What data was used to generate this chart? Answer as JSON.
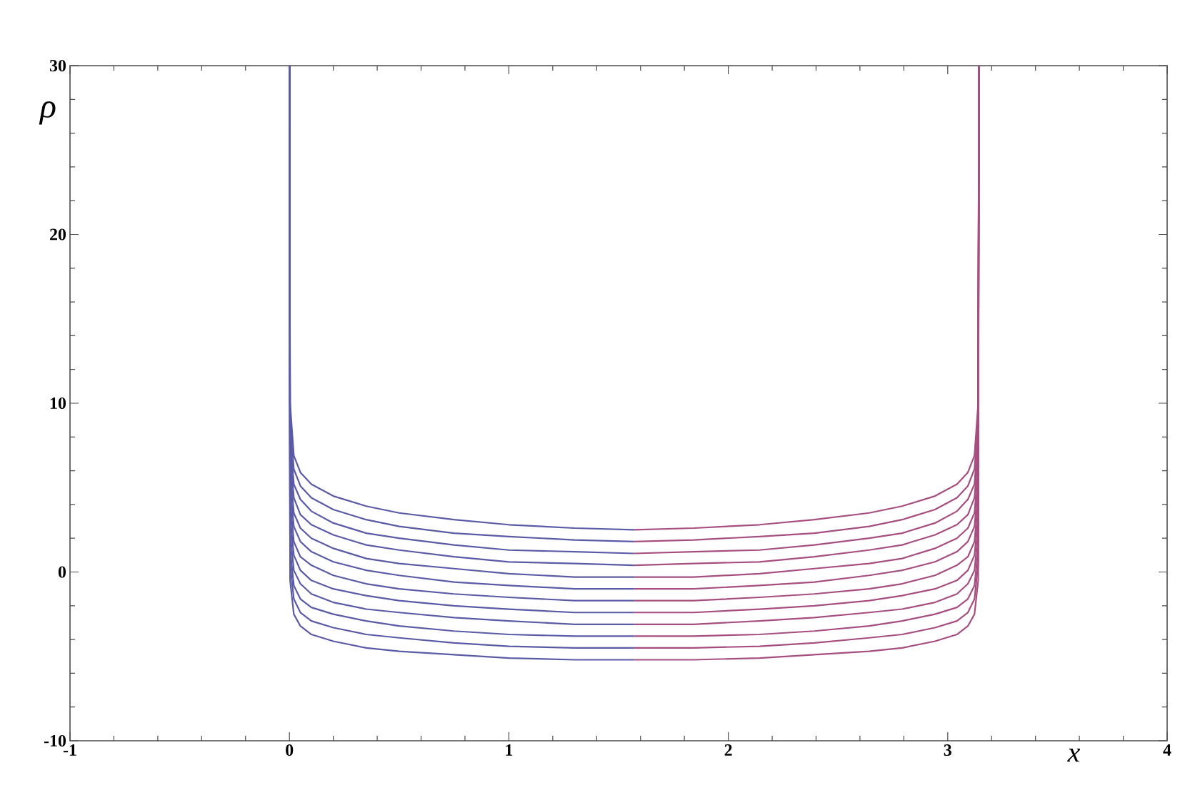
{
  "chart_data": {
    "type": "line",
    "xlabel": "x",
    "ylabel": "ρ",
    "xlim": [
      -1,
      4
    ],
    "ylim": [
      -10,
      30
    ],
    "xticks": [
      -1,
      0,
      1,
      2,
      3,
      4
    ],
    "yticks": [
      -10,
      0,
      10,
      20,
      30
    ],
    "marker": "none",
    "line_style": "solid",
    "series": [
      {
        "color": "#5a5aa6",
        "x": [
          0,
          0.003,
          0.02,
          0.05,
          0.1,
          0.2,
          0.35,
          0.5,
          0.75,
          1.0,
          1.3,
          1.571
        ],
        "values": [
          30,
          10.0,
          6.9,
          5.9,
          5.2,
          4.5,
          3.9,
          3.5,
          3.1,
          2.8,
          2.6,
          2.5
        ]
      },
      {
        "color": "#5a5aa6",
        "x": [
          0,
          0.003,
          0.02,
          0.05,
          0.1,
          0.2,
          0.35,
          0.5,
          0.75,
          1.0,
          1.3,
          1.571
        ],
        "values": [
          30,
          9.0,
          6.1,
          5.1,
          4.4,
          3.7,
          3.1,
          2.7,
          2.3,
          2.1,
          1.9,
          1.8
        ]
      },
      {
        "color": "#5a5aa6",
        "x": [
          0,
          0.003,
          0.02,
          0.05,
          0.1,
          0.2,
          0.35,
          0.5,
          0.75,
          1.0,
          1.3,
          1.571
        ],
        "values": [
          30,
          8.1,
          5.2,
          4.3,
          3.6,
          2.9,
          2.3,
          2.0,
          1.6,
          1.3,
          1.2,
          1.1
        ]
      },
      {
        "color": "#5a5aa6",
        "x": [
          0,
          0.003,
          0.02,
          0.05,
          0.1,
          0.2,
          0.35,
          0.5,
          0.75,
          1.0,
          1.3,
          1.571
        ],
        "values": [
          30,
          7.1,
          4.4,
          3.4,
          2.8,
          2.2,
          1.6,
          1.3,
          0.9,
          0.6,
          0.5,
          0.4
        ]
      },
      {
        "color": "#5a5aa6",
        "x": [
          0,
          0.003,
          0.02,
          0.05,
          0.1,
          0.2,
          0.35,
          0.5,
          0.75,
          1.0,
          1.3,
          1.571
        ],
        "values": [
          30,
          6.2,
          3.5,
          2.6,
          2.0,
          1.4,
          0.8,
          0.5,
          0.2,
          -0.1,
          -0.3,
          -0.3
        ]
      },
      {
        "color": "#5a5aa6",
        "x": [
          0,
          0.003,
          0.02,
          0.05,
          0.1,
          0.2,
          0.35,
          0.5,
          0.75,
          1.0,
          1.3,
          1.571
        ],
        "values": [
          30,
          5.2,
          2.7,
          1.8,
          1.2,
          0.6,
          0.1,
          -0.2,
          -0.6,
          -0.8,
          -1.0,
          -1.0
        ]
      },
      {
        "color": "#5a5aa6",
        "x": [
          0,
          0.003,
          0.02,
          0.05,
          0.1,
          0.2,
          0.35,
          0.5,
          0.75,
          1.0,
          1.3,
          1.571
        ],
        "values": [
          30,
          4.3,
          1.8,
          0.9,
          0.4,
          -0.2,
          -0.7,
          -1.0,
          -1.3,
          -1.5,
          -1.7,
          -1.7
        ]
      },
      {
        "color": "#5a5aa6",
        "x": [
          0,
          0.003,
          0.02,
          0.05,
          0.1,
          0.2,
          0.35,
          0.5,
          0.75,
          1.0,
          1.3,
          1.571
        ],
        "values": [
          30,
          3.3,
          1.0,
          0.1,
          -0.5,
          -1.0,
          -1.4,
          -1.7,
          -2.0,
          -2.2,
          -2.4,
          -2.4
        ]
      },
      {
        "color": "#5a5aa6",
        "x": [
          0,
          0.003,
          0.02,
          0.05,
          0.1,
          0.2,
          0.35,
          0.5,
          0.75,
          1.0,
          1.3,
          1.571
        ],
        "values": [
          30,
          2.4,
          0.1,
          -0.7,
          -1.3,
          -1.8,
          -2.2,
          -2.4,
          -2.7,
          -2.9,
          -3.1,
          -3.1
        ]
      },
      {
        "color": "#5a5aa6",
        "x": [
          0,
          0.003,
          0.02,
          0.05,
          0.1,
          0.2,
          0.35,
          0.5,
          0.75,
          1.0,
          1.3,
          1.571
        ],
        "values": [
          30,
          1.4,
          -0.8,
          -1.6,
          -2.1,
          -2.5,
          -2.9,
          -3.2,
          -3.5,
          -3.7,
          -3.8,
          -3.8
        ]
      },
      {
        "color": "#5a5aa6",
        "x": [
          0,
          0.003,
          0.02,
          0.05,
          0.1,
          0.2,
          0.35,
          0.5,
          0.75,
          1.0,
          1.3,
          1.571
        ],
        "values": [
          30,
          0.5,
          -1.6,
          -2.4,
          -2.9,
          -3.3,
          -3.7,
          -3.9,
          -4.2,
          -4.4,
          -4.5,
          -4.5
        ]
      },
      {
        "color": "#5a5aa6",
        "x": [
          0,
          0.003,
          0.02,
          0.05,
          0.1,
          0.2,
          0.35,
          0.5,
          0.75,
          1.0,
          1.3,
          1.571
        ],
        "values": [
          30,
          -0.5,
          -2.5,
          -3.2,
          -3.7,
          -4.1,
          -4.5,
          -4.7,
          -4.9,
          -5.1,
          -5.2,
          -5.2
        ]
      },
      {
        "color": "#a64e80",
        "x": [
          1.571,
          1.842,
          2.142,
          2.392,
          2.642,
          2.792,
          2.942,
          3.042,
          3.092,
          3.122,
          3.139,
          3.142
        ],
        "values": [
          2.5,
          2.6,
          2.8,
          3.1,
          3.5,
          3.9,
          4.5,
          5.2,
          5.9,
          6.9,
          10.0,
          30
        ]
      },
      {
        "color": "#a64e80",
        "x": [
          1.571,
          1.842,
          2.142,
          2.392,
          2.642,
          2.792,
          2.942,
          3.042,
          3.092,
          3.122,
          3.139,
          3.142
        ],
        "values": [
          1.8,
          1.9,
          2.1,
          2.3,
          2.7,
          3.1,
          3.7,
          4.4,
          5.1,
          6.1,
          9.0,
          30
        ]
      },
      {
        "color": "#a64e80",
        "x": [
          1.571,
          1.842,
          2.142,
          2.392,
          2.642,
          2.792,
          2.942,
          3.042,
          3.092,
          3.122,
          3.139,
          3.142
        ],
        "values": [
          1.1,
          1.2,
          1.3,
          1.6,
          2.0,
          2.3,
          2.9,
          3.6,
          4.3,
          5.2,
          8.1,
          30
        ]
      },
      {
        "color": "#a64e80",
        "x": [
          1.571,
          1.842,
          2.142,
          2.392,
          2.642,
          2.792,
          2.942,
          3.042,
          3.092,
          3.122,
          3.139,
          3.142
        ],
        "values": [
          0.4,
          0.5,
          0.6,
          0.9,
          1.3,
          1.6,
          2.2,
          2.8,
          3.4,
          4.4,
          7.1,
          30
        ]
      },
      {
        "color": "#a64e80",
        "x": [
          1.571,
          1.842,
          2.142,
          2.392,
          2.642,
          2.792,
          2.942,
          3.042,
          3.092,
          3.122,
          3.139,
          3.142
        ],
        "values": [
          -0.3,
          -0.3,
          -0.1,
          0.2,
          0.5,
          0.8,
          1.4,
          2.0,
          2.6,
          3.5,
          6.2,
          30
        ]
      },
      {
        "color": "#a64e80",
        "x": [
          1.571,
          1.842,
          2.142,
          2.392,
          2.642,
          2.792,
          2.942,
          3.042,
          3.092,
          3.122,
          3.139,
          3.142
        ],
        "values": [
          -1.0,
          -1.0,
          -0.8,
          -0.6,
          -0.2,
          0.1,
          0.6,
          1.2,
          1.8,
          2.7,
          5.2,
          30
        ]
      },
      {
        "color": "#a64e80",
        "x": [
          1.571,
          1.842,
          2.142,
          2.392,
          2.642,
          2.792,
          2.942,
          3.042,
          3.092,
          3.122,
          3.139,
          3.142
        ],
        "values": [
          -1.7,
          -1.7,
          -1.5,
          -1.3,
          -1.0,
          -0.7,
          -0.2,
          0.4,
          0.9,
          1.8,
          4.3,
          30
        ]
      },
      {
        "color": "#a64e80",
        "x": [
          1.571,
          1.842,
          2.142,
          2.392,
          2.642,
          2.792,
          2.942,
          3.042,
          3.092,
          3.122,
          3.139,
          3.142
        ],
        "values": [
          -2.4,
          -2.4,
          -2.2,
          -2.0,
          -1.7,
          -1.4,
          -1.0,
          -0.5,
          0.1,
          1.0,
          3.3,
          30
        ]
      },
      {
        "color": "#a64e80",
        "x": [
          1.571,
          1.842,
          2.142,
          2.392,
          2.642,
          2.792,
          2.942,
          3.042,
          3.092,
          3.122,
          3.139,
          3.142
        ],
        "values": [
          -3.1,
          -3.1,
          -2.9,
          -2.7,
          -2.4,
          -2.2,
          -1.8,
          -1.3,
          -0.7,
          0.1,
          2.4,
          30
        ]
      },
      {
        "color": "#a64e80",
        "x": [
          1.571,
          1.842,
          2.142,
          2.392,
          2.642,
          2.792,
          2.942,
          3.042,
          3.092,
          3.122,
          3.139,
          3.142
        ],
        "values": [
          -3.8,
          -3.8,
          -3.7,
          -3.5,
          -3.2,
          -2.9,
          -2.5,
          -2.1,
          -1.6,
          -0.8,
          1.4,
          30
        ]
      },
      {
        "color": "#a64e80",
        "x": [
          1.571,
          1.842,
          2.142,
          2.392,
          2.642,
          2.792,
          2.942,
          3.042,
          3.092,
          3.122,
          3.139,
          3.142
        ],
        "values": [
          -4.5,
          -4.5,
          -4.4,
          -4.2,
          -3.9,
          -3.7,
          -3.3,
          -2.9,
          -2.4,
          -1.6,
          0.5,
          30
        ]
      },
      {
        "color": "#a64e80",
        "x": [
          1.571,
          1.842,
          2.142,
          2.392,
          2.642,
          2.792,
          2.942,
          3.042,
          3.092,
          3.122,
          3.139,
          3.142
        ],
        "values": [
          -5.2,
          -5.2,
          -5.1,
          -4.9,
          -4.7,
          -4.5,
          -4.1,
          -3.7,
          -3.2,
          -2.5,
          -0.5,
          30
        ]
      }
    ]
  }
}
